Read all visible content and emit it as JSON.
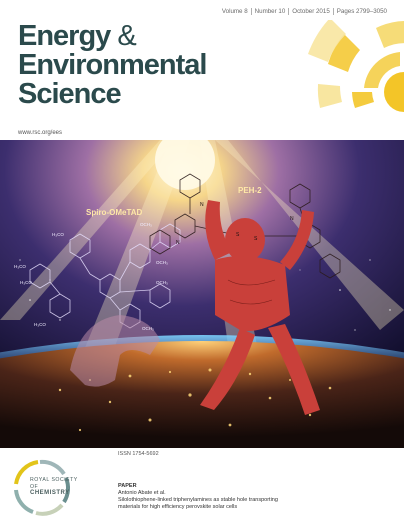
{
  "header": {
    "volume": "Volume 8",
    "number": "Number 10",
    "date": "October 2015",
    "pages": "Pages 2799–3050"
  },
  "journal": {
    "title_line1": "Energy",
    "title_amp": "&",
    "title_line2": "Environmental",
    "title_line3": "Science",
    "url": "www.rsc.org/ees"
  },
  "artwork": {
    "label_left": "Spiro-OMeTAD",
    "label_right": "PEH-2",
    "mol_labels": [
      "H₃CO",
      "OCH₃",
      "H₃CO",
      "OCH₃",
      "H₃CO",
      "OCH₃",
      "H₃CO",
      "OCH₃",
      "N",
      "N",
      "N",
      "S",
      "S"
    ]
  },
  "footer": {
    "issn": "ISSN 1754-5692",
    "publisher_line1": "ROYAL SOCIETY",
    "publisher_line2": "OF",
    "publisher_line3": "CHEMISTRY",
    "paper_kind": "PAPER",
    "paper_authors": "Antonio Abate et al.",
    "paper_title_line1": "Silolothiophene-linked triphenylamines as stable hole transporting",
    "paper_title_line2": "materials for high efficiency perovskite solar cells"
  },
  "colors": {
    "title": "#2b4a4c",
    "sun": "#f2c21c",
    "figure_red": "#c9403a"
  }
}
